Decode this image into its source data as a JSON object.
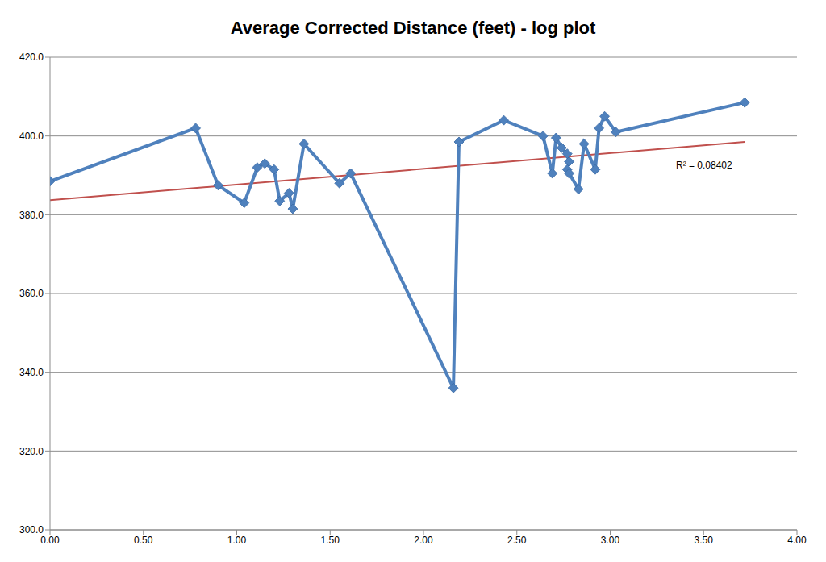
{
  "chart_data": {
    "type": "line",
    "title": "Average Corrected Distance (feet) - log plot",
    "x": [
      0.0,
      0.78,
      0.9,
      1.04,
      1.11,
      1.15,
      1.2,
      1.23,
      1.28,
      1.3,
      1.36,
      1.55,
      1.61,
      2.16,
      2.19,
      2.43,
      2.64,
      2.69,
      2.71,
      2.74,
      2.77,
      2.78,
      2.77,
      2.78,
      2.83,
      2.86,
      2.92,
      2.94,
      2.97,
      3.03,
      3.72
    ],
    "values": [
      388.5,
      402,
      387.5,
      383,
      392,
      393,
      391.5,
      383.5,
      385.5,
      381.5,
      398,
      388,
      390.5,
      336,
      398.5,
      404,
      400,
      390.5,
      399.5,
      397,
      395.5,
      393.5,
      391.5,
      390.5,
      386.5,
      398,
      391.5,
      402,
      405,
      401,
      408.5
    ],
    "color": "#4f81bd",
    "marker": "diamond",
    "trendline": {
      "x": [
        0.0,
        3.72
      ],
      "values": [
        383.7,
        398.5
      ],
      "color": "#c0504d"
    },
    "annotations": [
      "R² = 0.08402"
    ],
    "xlim": [
      0,
      4
    ],
    "xticks": [
      {
        "value": 0,
        "label": "0.00"
      },
      {
        "value": 0.5,
        "label": "0.50"
      },
      {
        "value": 1,
        "label": "1.00"
      },
      {
        "value": 1.5,
        "label": "1.50"
      },
      {
        "value": 2,
        "label": "2.00"
      },
      {
        "value": 2.5,
        "label": "2.50"
      },
      {
        "value": 3,
        "label": "3.00"
      },
      {
        "value": 3.5,
        "label": "3.50"
      },
      {
        "value": 4,
        "label": "4.00"
      }
    ],
    "ylim": [
      300,
      420
    ],
    "yticks": [
      {
        "value": 300,
        "label": "300.0"
      },
      {
        "value": 320,
        "label": "320.0"
      },
      {
        "value": 340,
        "label": "340.0"
      },
      {
        "value": 360,
        "label": "360.0"
      },
      {
        "value": 380,
        "label": "380.0"
      },
      {
        "value": 400,
        "label": "400.0"
      },
      {
        "value": 420,
        "label": "420.0"
      }
    ],
    "grid": true
  }
}
